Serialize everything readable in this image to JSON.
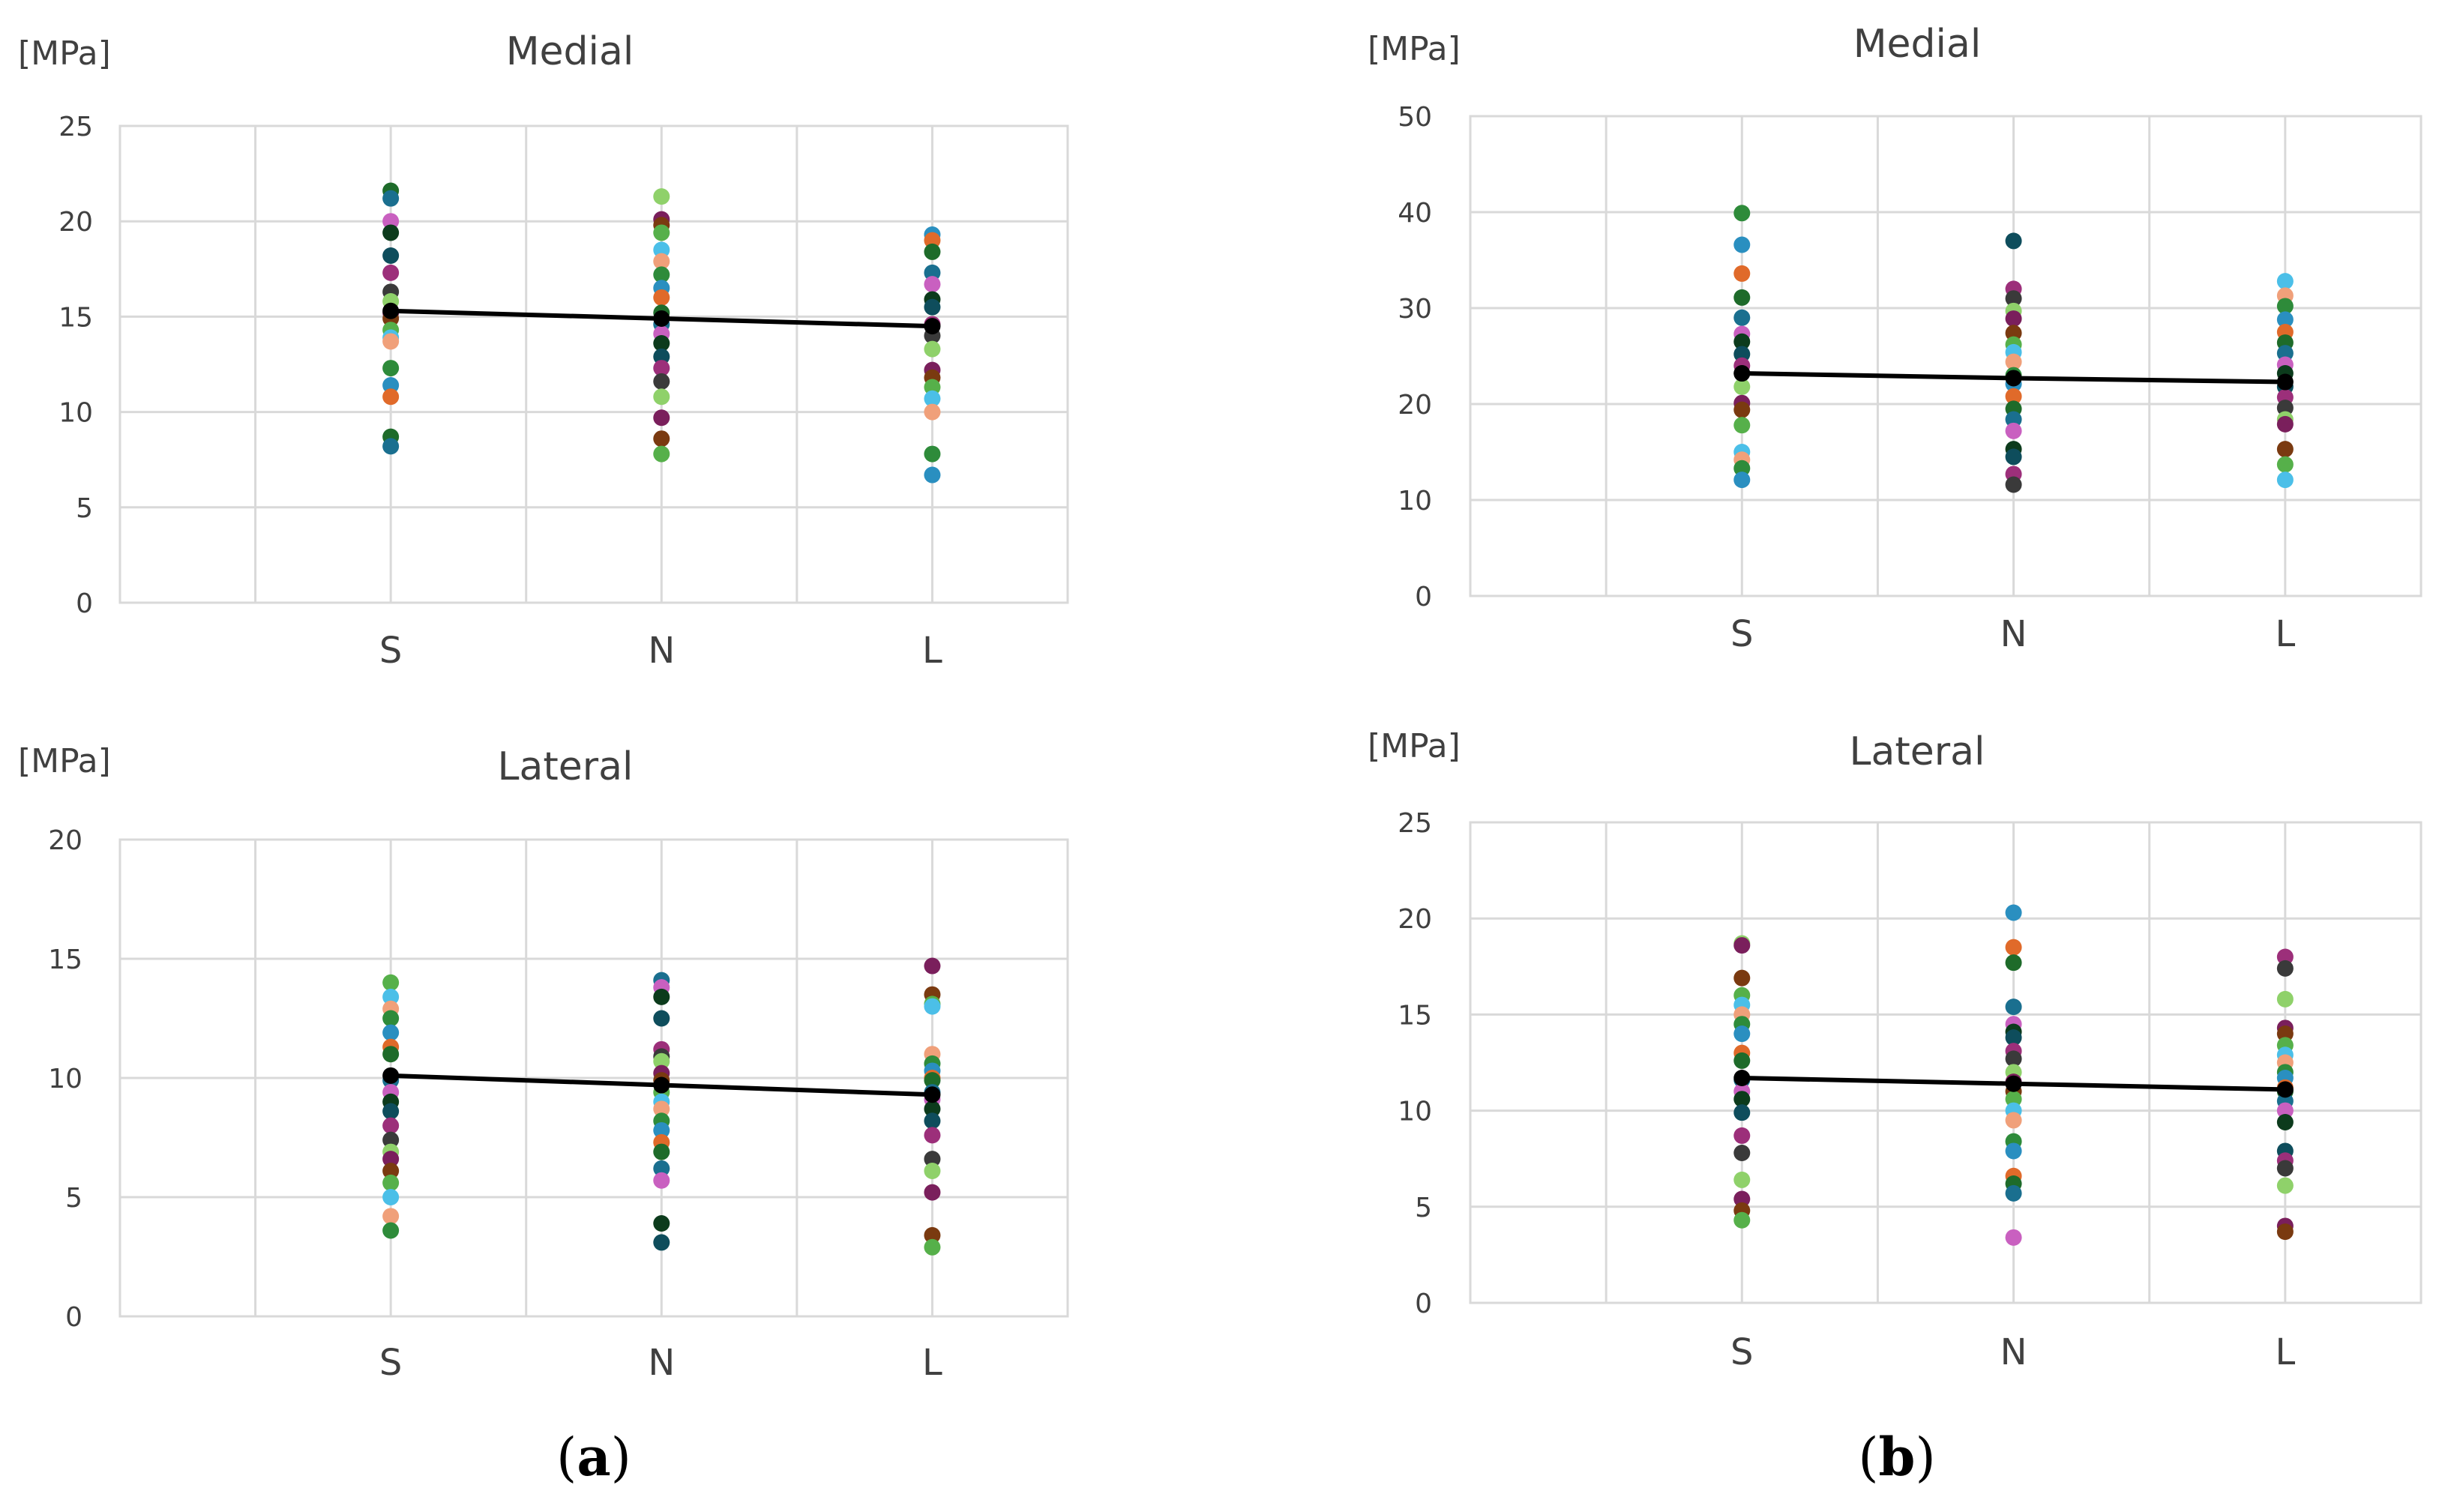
{
  "chart_data": [
    {
      "type": "scatter",
      "panel": "a",
      "title": "Medial",
      "unit": "[MPa]",
      "categories": [
        "S",
        "N",
        "L"
      ],
      "yticks": [
        "0",
        "5",
        "10",
        "15",
        "20",
        "25"
      ],
      "ylim": [
        0,
        25
      ],
      "grid": true,
      "points": {
        "S": [
          21.6,
          21.2,
          20.0,
          19.4,
          18.2,
          17.3,
          16.3,
          15.8,
          15.2,
          14.9,
          14.3,
          13.9,
          13.7,
          12.3,
          11.4,
          10.8,
          8.7,
          8.2
        ],
        "N": [
          21.3,
          20.1,
          19.8,
          19.4,
          18.5,
          17.9,
          17.2,
          16.5,
          16.0,
          15.2,
          14.6,
          14.1,
          13.6,
          12.9,
          12.3,
          11.6,
          10.8,
          9.7,
          8.6,
          7.8
        ],
        "L": [
          19.3,
          19.0,
          18.4,
          17.3,
          16.7,
          15.9,
          15.5,
          14.6,
          14.0,
          13.3,
          12.2,
          11.8,
          11.3,
          10.7,
          10.0,
          7.8,
          6.7
        ]
      },
      "mean_line": [
        15.3,
        14.9,
        14.5
      ]
    },
    {
      "type": "scatter",
      "panel": "b",
      "title": "Medial",
      "unit": "[MPa]",
      "categories": [
        "S",
        "N",
        "L"
      ],
      "yticks": [
        "0",
        "10",
        "20",
        "30",
        "40",
        "50"
      ],
      "ylim": [
        0,
        50
      ],
      "grid": true,
      "points": {
        "S": [
          39.9,
          36.6,
          33.6,
          31.1,
          29.0,
          27.3,
          26.5,
          25.2,
          24.0,
          23.2,
          21.8,
          20.1,
          19.4,
          17.8,
          15.0,
          14.2,
          13.3,
          12.1
        ],
        "N": [
          37.0,
          32.0,
          31.0,
          29.7,
          28.9,
          27.4,
          26.2,
          25.4,
          24.4,
          23.0,
          22.1,
          20.8,
          19.5,
          18.4,
          17.2,
          15.3,
          14.5,
          12.7,
          11.6
        ],
        "L": [
          32.8,
          31.3,
          30.2,
          28.8,
          27.5,
          26.4,
          25.3,
          24.1,
          23.2,
          21.8,
          20.7,
          19.6,
          18.4,
          17.9,
          15.3,
          13.7,
          12.1
        ]
      },
      "mean_line": [
        23.2,
        22.7,
        22.3
      ]
    },
    {
      "type": "scatter",
      "panel": "a",
      "title": "Lateral",
      "unit": "[MPa]",
      "categories": [
        "S",
        "N",
        "L"
      ],
      "yticks": [
        "0",
        "5",
        "10",
        "15",
        "20"
      ],
      "ylim": [
        0,
        20
      ],
      "grid": true,
      "points": {
        "S": [
          14.0,
          13.4,
          12.9,
          12.5,
          11.9,
          11.3,
          11.0,
          9.9,
          9.4,
          9.0,
          8.6,
          8.0,
          7.4,
          6.9,
          6.6,
          6.1,
          5.6,
          5.0,
          4.2,
          3.6
        ],
        "N": [
          14.1,
          13.8,
          13.4,
          12.5,
          11.2,
          10.9,
          10.7,
          10.2,
          9.9,
          9.4,
          9.0,
          8.7,
          8.2,
          7.8,
          7.3,
          6.9,
          6.2,
          5.7,
          3.9,
          3.1
        ],
        "L": [
          14.7,
          13.5,
          13.1,
          13.0,
          11.0,
          10.6,
          10.3,
          10.0,
          9.9,
          9.4,
          9.1,
          8.7,
          8.2,
          7.6,
          6.6,
          6.1,
          5.2,
          3.4,
          2.9
        ]
      },
      "mean_line": [
        10.1,
        9.7,
        9.3
      ]
    },
    {
      "type": "scatter",
      "panel": "b",
      "title": "Lateral",
      "unit": "[MPa]",
      "categories": [
        "S",
        "N",
        "L"
      ],
      "yticks": [
        "0",
        "5",
        "10",
        "15",
        "20",
        "25"
      ],
      "ylim": [
        0,
        25
      ],
      "grid": true,
      "points": {
        "S": [
          18.7,
          18.6,
          16.9,
          16.0,
          15.5,
          15.0,
          14.5,
          14.0,
          13.0,
          12.6,
          11.6,
          11.0,
          10.6,
          9.9,
          8.7,
          7.8,
          6.4,
          5.4,
          4.8,
          4.3
        ],
        "N": [
          20.3,
          18.5,
          17.7,
          15.4,
          14.5,
          14.1,
          13.8,
          13.1,
          12.7,
          12.0,
          11.5,
          11.0,
          10.6,
          10.0,
          9.5,
          8.4,
          7.9,
          6.6,
          6.2,
          5.7,
          3.4
        ],
        "L": [
          18.0,
          17.4,
          15.8,
          14.3,
          14.0,
          13.4,
          12.9,
          12.5,
          12.0,
          11.7,
          11.2,
          11.0,
          10.5,
          10.0,
          9.4,
          7.9,
          7.4,
          7.0,
          6.1,
          4.0,
          3.7
        ]
      },
      "mean_line": [
        11.7,
        11.4,
        11.1
      ]
    }
  ],
  "panel_labels": {
    "a_open": "(",
    "a": "a",
    "a_close": ")",
    "b_open": "(",
    "b": "b",
    "b_close": ")"
  },
  "colors": {
    "palette": [
      "#1e6b2a",
      "#2e8b3a",
      "#56b04a",
      "#8fd16a",
      "#0e4d5c",
      "#1a6f8f",
      "#2a8fc0",
      "#4bbfe8",
      "#7a1f5c",
      "#9c2f7a",
      "#c960c0",
      "#e06a2a",
      "#f0a07a",
      "#7a3a10",
      "#3a3a3a",
      "#0c3b1c"
    ],
    "mean_line": "#000000",
    "grid": "#d9d9d9",
    "axis": "#bfbfbf"
  }
}
